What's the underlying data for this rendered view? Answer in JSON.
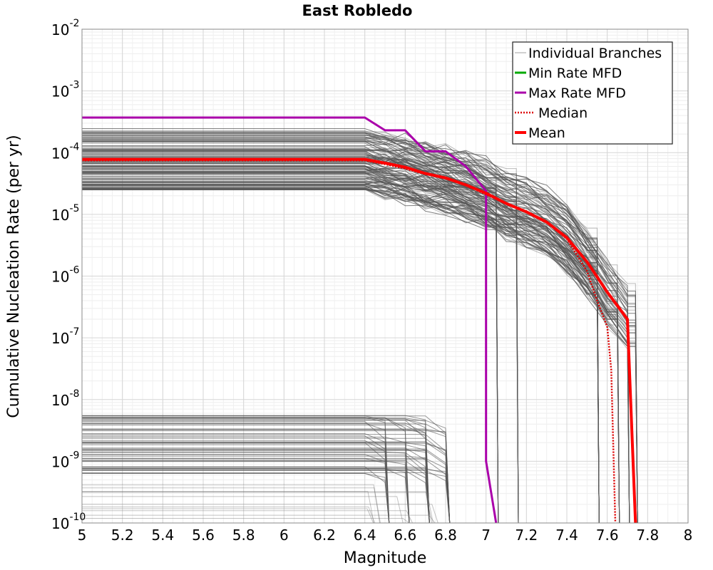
{
  "chart_data": {
    "type": "line",
    "title": "East Robledo",
    "xlabel": "Magnitude",
    "ylabel": "Cumulative Nucleation Rate (per yr)",
    "xlim": [
      5,
      8
    ],
    "ylim": [
      1e-10,
      0.01
    ],
    "yscale": "log",
    "grid": true,
    "legend_position": "top-right",
    "x_ticks": [
      "5",
      "5.2",
      "5.4",
      "5.6",
      "5.8",
      "6",
      "6.2",
      "6.4",
      "6.6",
      "6.8",
      "7",
      "7.2",
      "7.4",
      "7.6",
      "7.8",
      "8"
    ],
    "y_ticks": [
      {
        "base": "10",
        "exp": "-2"
      },
      {
        "base": "10",
        "exp": "-3"
      },
      {
        "base": "10",
        "exp": "-4"
      },
      {
        "base": "10",
        "exp": "-5"
      },
      {
        "base": "10",
        "exp": "-6"
      },
      {
        "base": "10",
        "exp": "-7"
      },
      {
        "base": "10",
        "exp": "-8"
      },
      {
        "base": "10",
        "exp": "-9"
      },
      {
        "base": "10",
        "exp": "-10"
      }
    ],
    "legend": [
      {
        "name": "Individual Branches",
        "color": "#a0a0a0",
        "style": "solid-thin"
      },
      {
        "name": "Min Rate MFD",
        "color": "#00aa00",
        "style": "solid"
      },
      {
        "name": "Max Rate MFD",
        "color": "#aa00aa",
        "style": "solid"
      },
      {
        "name": "Median",
        "color": "#dd0000",
        "style": "dotted"
      },
      {
        "name": "Mean",
        "color": "#ff0000",
        "style": "solid-thick"
      }
    ],
    "series": [
      {
        "name": "Max Rate MFD",
        "color": "#aa00aa",
        "x": [
          5.0,
          6.4,
          6.5,
          6.6,
          6.7,
          6.8,
          6.9,
          7.0,
          7.0,
          7.05
        ],
        "y": [
          0.00037,
          0.00037,
          0.00023,
          0.00023,
          0.000105,
          0.000105,
          6e-05,
          2.4e-05,
          1e-09,
          1e-10
        ]
      },
      {
        "name": "Median",
        "color": "#dd0000",
        "x": [
          5.0,
          6.4,
          6.5,
          6.6,
          6.7,
          6.8,
          6.9,
          7.0,
          7.1,
          7.2,
          7.3,
          7.4,
          7.5,
          7.55,
          7.6,
          7.62,
          7.64
        ],
        "y": [
          7.5e-05,
          7.5e-05,
          6.5e-05,
          5.5e-05,
          4.5e-05,
          3.8e-05,
          3e-05,
          2.1e-05,
          1.5e-05,
          1.1e-05,
          7.5e-06,
          4e-06,
          1.2e-06,
          4e-07,
          1.5e-07,
          3e-08,
          1e-10
        ]
      },
      {
        "name": "Mean",
        "color": "#ff0000",
        "x": [
          5.0,
          6.4,
          6.5,
          6.6,
          6.7,
          6.8,
          6.9,
          7.0,
          7.1,
          7.2,
          7.3,
          7.4,
          7.5,
          7.6,
          7.7,
          7.74
        ],
        "y": [
          7.8e-05,
          7.8e-05,
          6.8e-05,
          5.8e-05,
          4.6e-05,
          3.9e-05,
          3e-05,
          2.2e-05,
          1.5e-05,
          1.1e-05,
          7.5e-06,
          4.2e-06,
          1.7e-06,
          5.5e-07,
          2e-07,
          1e-10
        ]
      }
    ]
  }
}
